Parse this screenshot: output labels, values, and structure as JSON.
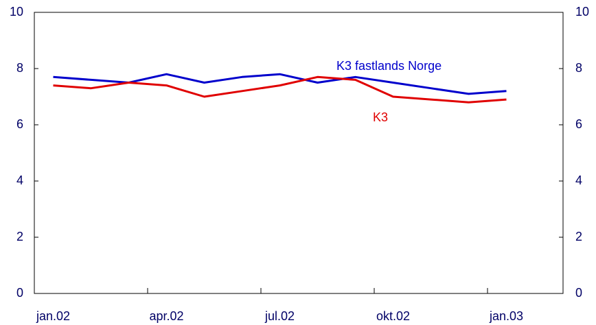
{
  "chart_data": {
    "type": "line",
    "categories": [
      "jan.02",
      null,
      null,
      "apr.02",
      null,
      null,
      "jul.02",
      null,
      null,
      "okt.02",
      null,
      null,
      "jan.03",
      null
    ],
    "series": [
      {
        "name": "K3 fastlands Norge",
        "color": "#0000cc",
        "values": [
          7.7,
          7.6,
          7.5,
          7.8,
          7.5,
          7.7,
          7.8,
          7.5,
          7.7,
          7.5,
          7.3,
          7.1,
          7.2,
          null
        ]
      },
      {
        "name": "K3",
        "color": "#e00000",
        "values": [
          7.4,
          7.3,
          7.5,
          7.4,
          7.0,
          7.2,
          7.4,
          7.7,
          7.6,
          7.0,
          6.9,
          6.8,
          6.9,
          null
        ]
      }
    ],
    "ylim": [
      0,
      10
    ],
    "yticks": [
      0,
      2,
      4,
      6,
      8,
      10
    ],
    "y2lim": [
      0,
      10
    ],
    "y2ticks": [
      0,
      2,
      4,
      6,
      8,
      10
    ],
    "grid": false
  }
}
